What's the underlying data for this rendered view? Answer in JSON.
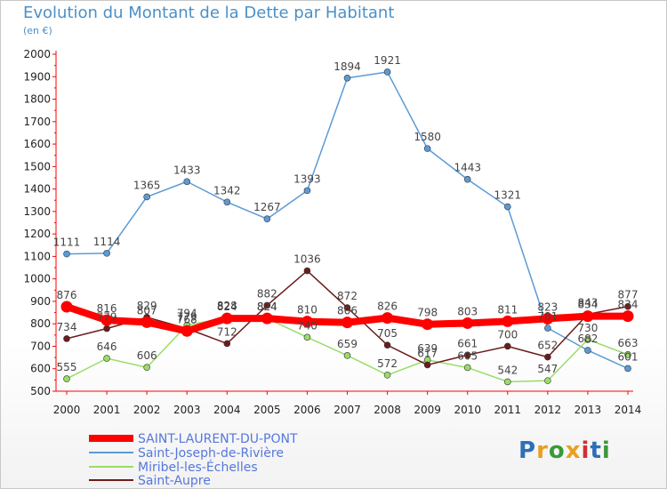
{
  "title": "Evolution du Montant de la Dette par Habitant",
  "subtitle": "(en €)",
  "logo_text": "Proxiti",
  "chart_data": {
    "type": "line",
    "title": "Evolution du Montant de la Dette par Habitant",
    "ylabel": "(en €)",
    "xlabel": "",
    "x": [
      2000,
      2001,
      2002,
      2003,
      2004,
      2005,
      2006,
      2007,
      2008,
      2009,
      2010,
      2011,
      2012,
      2013,
      2014
    ],
    "ylim": [
      500,
      2000
    ],
    "yticks": [
      500,
      600,
      700,
      800,
      900,
      1000,
      1100,
      1200,
      1300,
      1400,
      1500,
      1600,
      1700,
      1800,
      1900,
      2000
    ],
    "grid": false,
    "legend_position": "bottom-left",
    "series": [
      {
        "name": "Saint-Joseph-de-Rivière",
        "color": "#5b9bd5",
        "values": [
          1111,
          1114,
          1365,
          1433,
          1342,
          1267,
          1393,
          1894,
          1921,
          1580,
          1443,
          1321,
          781,
          682,
          601
        ]
      },
      {
        "name": "Miribel-les-Échelles",
        "color": "#99dd66",
        "values": [
          555,
          646,
          606,
          794,
          828,
          824,
          740,
          659,
          572,
          639,
          605,
          542,
          547,
          730,
          663
        ]
      },
      {
        "name": "Saint-Aupre",
        "color": "#6b1c1c",
        "values": [
          734,
          779,
          829,
          779,
          712,
          882,
          1036,
          872,
          705,
          617,
          661,
          700,
          652,
          843,
          877
        ]
      },
      {
        "name": "SAINT-LAURENT-DU-PONT",
        "color": "#ff0000",
        "values": [
          876,
          816,
          807,
          768,
          824,
          824,
          810,
          806,
          826,
          798,
          803,
          811,
          823,
          834,
          834
        ]
      }
    ],
    "legend": [
      "SAINT-LAURENT-DU-PONT",
      "Saint-Joseph-de-Rivière",
      "Miribel-les-Échelles",
      "Saint-Aupre"
    ]
  }
}
